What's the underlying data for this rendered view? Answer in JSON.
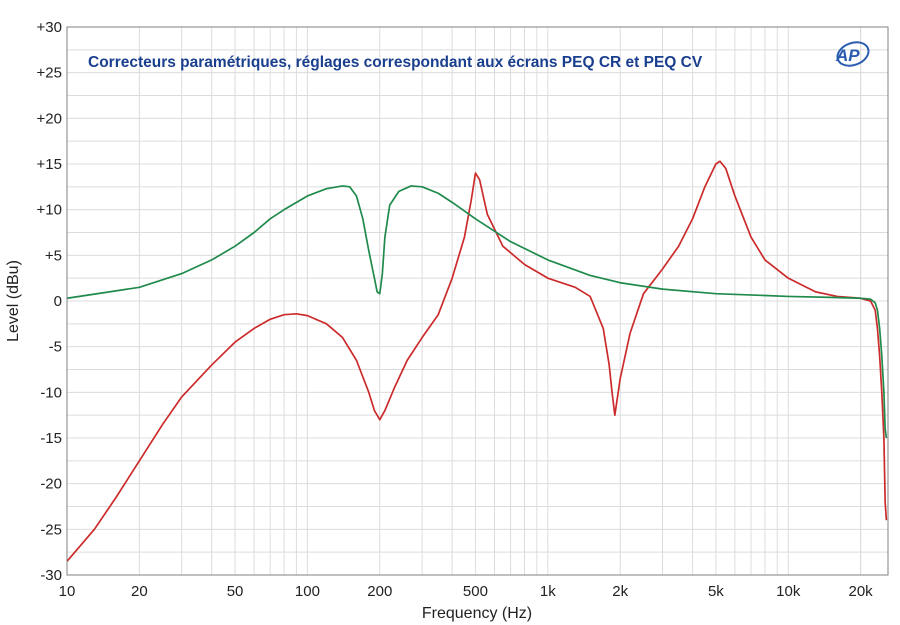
{
  "chart_data": {
    "type": "line",
    "title": "Correcteurs paramétriques, réglages correspondant aux écrans PEQ CR et PEQ CV",
    "xlabel": "Frequency (Hz)",
    "ylabel": "Level (dBu)",
    "xscale": "log",
    "xlim": [
      10,
      26000
    ],
    "ylim": [
      -30,
      30
    ],
    "grid": true,
    "x_tick_labels": [
      "10",
      "20",
      "50",
      "100",
      "200",
      "500",
      "1k",
      "2k",
      "5k",
      "10k",
      "20k"
    ],
    "x_tick_values": [
      10,
      20,
      50,
      100,
      200,
      500,
      1000,
      2000,
      5000,
      10000,
      20000
    ],
    "y_tick_labels": [
      "+30",
      "+25",
      "+20",
      "+15",
      "+10",
      "+5",
      "0",
      "-5",
      "-10",
      "-15",
      "-20",
      "-25",
      "-30"
    ],
    "y_tick_values": [
      30,
      25,
      20,
      15,
      10,
      5,
      0,
      -5,
      -10,
      -15,
      -20,
      -25,
      -30
    ],
    "colors": {
      "title": "#1a3f8f",
      "grid": "#dcdcdc",
      "frame": "#808080",
      "logo": "#2a5db0"
    },
    "series": [
      {
        "color": "#cc2b2b",
        "x": [
          10,
          13,
          16,
          20,
          25,
          30,
          40,
          50,
          60,
          70,
          80,
          90,
          100,
          120,
          140,
          160,
          180,
          190,
          200,
          210,
          230,
          260,
          300,
          350,
          400,
          450,
          480,
          500,
          520,
          560,
          650,
          800,
          1000,
          1300,
          1500,
          1700,
          1800,
          1850,
          1900,
          2000,
          2200,
          2500,
          3000,
          3500,
          4000,
          4500,
          5000,
          5200,
          5500,
          6000,
          7000,
          8000,
          10000,
          13000,
          16000,
          20000,
          22000,
          23000,
          23500,
          24000,
          24500,
          25000,
          25300,
          25600
        ],
        "y": [
          -28.5,
          -25,
          -21.5,
          -17.5,
          -13.5,
          -10.5,
          -7,
          -4.5,
          -3,
          -2,
          -1.5,
          -1.4,
          -1.6,
          -2.5,
          -4,
          -6.5,
          -10,
          -12,
          -13,
          -12,
          -9.5,
          -6.5,
          -4,
          -1.5,
          2.5,
          7,
          11,
          14,
          13.3,
          9.5,
          6,
          4,
          2.5,
          1.5,
          0.5,
          -3,
          -7,
          -10,
          -12.5,
          -8.5,
          -3.5,
          0.8,
          3.5,
          6,
          9,
          12.5,
          15,
          15.3,
          14.5,
          11.5,
          7,
          4.5,
          2.5,
          1,
          0.5,
          0.3,
          0,
          -1,
          -3,
          -6,
          -10,
          -15,
          -22,
          -24
        ]
      },
      {
        "color": "#1f8a4c",
        "x": [
          10,
          15,
          20,
          30,
          40,
          50,
          60,
          70,
          80,
          100,
          120,
          140,
          150,
          160,
          170,
          180,
          190,
          195,
          200,
          205,
          210,
          220,
          240,
          270,
          300,
          350,
          400,
          500,
          700,
          1000,
          1500,
          2000,
          3000,
          5000,
          8000,
          10000,
          15000,
          20000,
          22000,
          23000,
          23500,
          24000,
          24500,
          25000,
          25300,
          25600
        ],
        "y": [
          0.3,
          1,
          1.5,
          3,
          4.5,
          6,
          7.5,
          9,
          10,
          11.5,
          12.3,
          12.6,
          12.5,
          11.5,
          9,
          5.5,
          2.5,
          1,
          0.8,
          3,
          7,
          10.5,
          12,
          12.6,
          12.5,
          11.8,
          10.8,
          9,
          6.5,
          4.5,
          2.8,
          2,
          1.3,
          0.8,
          0.6,
          0.5,
          0.4,
          0.3,
          0.2,
          -0.2,
          -1,
          -3,
          -6,
          -10,
          -14,
          -15
        ]
      }
    ]
  }
}
